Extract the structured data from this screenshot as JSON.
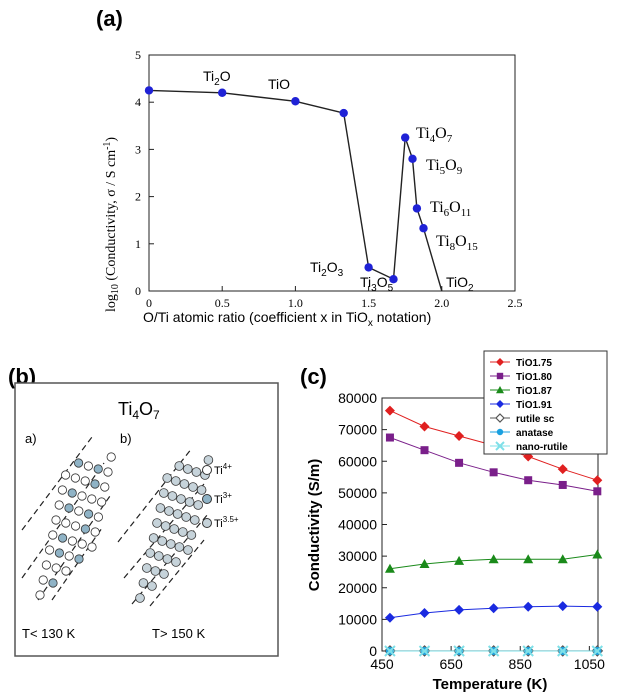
{
  "panels": {
    "a": "(a)",
    "b": "(b)",
    "c": "(c)"
  },
  "chart_data": [
    {
      "id": "a",
      "type": "line",
      "xlabel": "O/Ti atomic ratio (coefficient x in TiOx notation)",
      "ylabel": "log10 (Conductivity, σ / S cm-1)",
      "xlim": [
        0,
        2.5
      ],
      "ylim": [
        0,
        5
      ],
      "xticks": [
        "0",
        "0.5",
        "1.0",
        "1.5",
        "2.0",
        "2.5"
      ],
      "yticks": [
        "0",
        "1",
        "2",
        "3",
        "4",
        "5"
      ],
      "x": [
        0,
        0.5,
        1.0,
        1.33,
        1.5,
        1.67,
        1.75,
        1.8,
        1.83,
        1.875,
        2.0
      ],
      "y": [
        4.25,
        4.2,
        4.02,
        3.77,
        0.5,
        0.25,
        3.25,
        2.8,
        1.75,
        1.33,
        0.0
      ],
      "point_color": "#1f22d6",
      "annotations": [
        {
          "label": "Ti2O",
          "x": 0.5
        },
        {
          "label": "TiO",
          "x": 1.0
        },
        {
          "label": "Ti4O7",
          "x": 1.75
        },
        {
          "label": "Ti5O9",
          "x": 1.8
        },
        {
          "label": "Ti6O11",
          "x": 1.83
        },
        {
          "label": "Ti8O15",
          "x": 1.875
        },
        {
          "label": "Ti2O3",
          "x": 1.5
        },
        {
          "label": "Ti3O5",
          "x": 1.67
        },
        {
          "label": "TiO2",
          "x": 2.0
        }
      ]
    },
    {
      "id": "b",
      "type": "other",
      "title": "Ti4O7",
      "subpanels": [
        {
          "label": "a)",
          "condition": "T< 130 K"
        },
        {
          "label": "b)",
          "condition": "T> 150 K"
        }
      ],
      "legend": [
        {
          "label": "Ti4+",
          "fill": "#ffffff"
        },
        {
          "label": "Ti3+",
          "fill": "#8fb3c6"
        },
        {
          "label": "Ti3.5+",
          "fill": "#c6d3da"
        }
      ]
    },
    {
      "id": "c",
      "type": "line",
      "xlabel": "Temperature (K)",
      "ylabel": "Conductivity (S/m)",
      "xlim": [
        450,
        1075
      ],
      "ylim": [
        0,
        80000
      ],
      "xticks": [
        "450",
        "650",
        "850",
        "1050"
      ],
      "yticks": [
        "0",
        "10000",
        "20000",
        "30000",
        "40000",
        "50000",
        "60000",
        "70000",
        "80000"
      ],
      "x": [
        473,
        573,
        673,
        773,
        873,
        973,
        1073
      ],
      "series": [
        {
          "name": "TiO1.75",
          "marker": "diamond",
          "color": "#e02020",
          "values": [
            76000,
            71000,
            68000,
            65000,
            61500,
            57500,
            54000
          ]
        },
        {
          "name": "TiO1.80",
          "marker": "square",
          "color": "#7a1f8a",
          "values": [
            67500,
            63500,
            59500,
            56500,
            54000,
            52500,
            50500
          ]
        },
        {
          "name": "TiO1.87",
          "marker": "triangle",
          "color": "#1a8a1a",
          "values": [
            26000,
            27500,
            28500,
            29000,
            29000,
            29000,
            30500
          ]
        },
        {
          "name": "TiO1.91",
          "marker": "diamond",
          "color": "#1a2ae0",
          "values": [
            10500,
            12000,
            13000,
            13500,
            14000,
            14200,
            14000
          ]
        },
        {
          "name": "rutile sc",
          "marker": "diamond-open",
          "color": "#555555",
          "values": [
            20,
            20,
            20,
            20,
            20,
            20,
            20
          ]
        },
        {
          "name": "anatase",
          "marker": "circle",
          "color": "#1aa0e0",
          "values": [
            10,
            10,
            10,
            10,
            10,
            10,
            10
          ]
        },
        {
          "name": "nano-rutile",
          "marker": "x",
          "color": "#7fe0e8",
          "values": [
            5,
            5,
            5,
            5,
            5,
            5,
            5
          ]
        }
      ]
    }
  ]
}
